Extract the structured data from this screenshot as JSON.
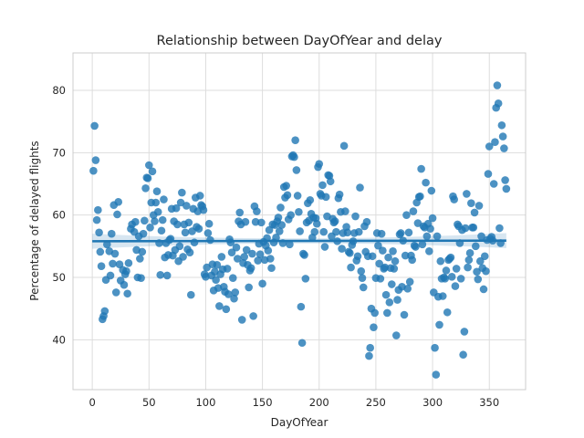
{
  "chart_data": {
    "type": "scatter",
    "title": "Relationship between DayOfYear and delay",
    "xlabel": "DayOfYear",
    "ylabel": "Percentage of delayed flights",
    "xlim": [
      -17,
      382
    ],
    "ylim": [
      32,
      86
    ],
    "x_ticks": [
      0,
      50,
      100,
      150,
      200,
      250,
      300,
      350
    ],
    "y_ticks": [
      40,
      50,
      60,
      70,
      80
    ],
    "grid": true,
    "point_color": "#1f77b4",
    "regression": {
      "x_start": 0,
      "x_end": 365,
      "y_start": 55.8,
      "y_end": 55.9,
      "ci_half_width_ends": 1.2,
      "ci_half_width_mid": 0.4
    },
    "points": [
      [
        1,
        67.1
      ],
      [
        2,
        74.3
      ],
      [
        3,
        68.8
      ],
      [
        4,
        59.2
      ],
      [
        5,
        60.8
      ],
      [
        6,
        57.2
      ],
      [
        7,
        54.1
      ],
      [
        8,
        51.8
      ],
      [
        9,
        43.3
      ],
      [
        10,
        43.8
      ],
      [
        11,
        44.6
      ],
      [
        12,
        49.6
      ],
      [
        13,
        55.3
      ],
      [
        15,
        54.2
      ],
      [
        16,
        50.3
      ],
      [
        17,
        57.0
      ],
      [
        18,
        52.2
      ],
      [
        19,
        61.6
      ],
      [
        20,
        53.8
      ],
      [
        21,
        47.6
      ],
      [
        22,
        60.1
      ],
      [
        23,
        62.1
      ],
      [
        24,
        52.1
      ],
      [
        25,
        49.5
      ],
      [
        27,
        51.2
      ],
      [
        28,
        48.8
      ],
      [
        29,
        50.5
      ],
      [
        30,
        51.0
      ],
      [
        31,
        47.4
      ],
      [
        32,
        52.3
      ],
      [
        34,
        57.8
      ],
      [
        35,
        58.5
      ],
      [
        37,
        57.3
      ],
      [
        38,
        58.9
      ],
      [
        39,
        54.4
      ],
      [
        40,
        50.0
      ],
      [
        41,
        56.6
      ],
      [
        42,
        53.0
      ],
      [
        43,
        49.9
      ],
      [
        44,
        54.1
      ],
      [
        45,
        57.0
      ],
      [
        46,
        59.1
      ],
      [
        47,
        64.3
      ],
      [
        48,
        66.0
      ],
      [
        49,
        65.9
      ],
      [
        50,
        68.0
      ],
      [
        51,
        58.0
      ],
      [
        52,
        62.0
      ],
      [
        53,
        67.0
      ],
      [
        54,
        60.0
      ],
      [
        55,
        59.0
      ],
      [
        56,
        62.0
      ],
      [
        57,
        63.8
      ],
      [
        58,
        60.5
      ],
      [
        59,
        55.5
      ],
      [
        60,
        50.4
      ],
      [
        61,
        57.5
      ],
      [
        62,
        59.2
      ],
      [
        63,
        62.5
      ],
      [
        64,
        53.2
      ],
      [
        65,
        55.5
      ],
      [
        66,
        50.3
      ],
      [
        67,
        53.6
      ],
      [
        68,
        56.0
      ],
      [
        69,
        56.2
      ],
      [
        70,
        61.0
      ],
      [
        71,
        53.5
      ],
      [
        72,
        59.0
      ],
      [
        73,
        54.4
      ],
      [
        74,
        61.1
      ],
      [
        75,
        58.5
      ],
      [
        76,
        52.6
      ],
      [
        77,
        55.0
      ],
      [
        78,
        62.0
      ],
      [
        79,
        63.6
      ],
      [
        80,
        53.3
      ],
      [
        81,
        58.5
      ],
      [
        82,
        57.2
      ],
      [
        83,
        61.5
      ],
      [
        84,
        54.5
      ],
      [
        85,
        58.8
      ],
      [
        86,
        54.0
      ],
      [
        87,
        47.2
      ],
      [
        88,
        57.4
      ],
      [
        89,
        61.0
      ],
      [
        90,
        55.6
      ],
      [
        91,
        62.8
      ],
      [
        92,
        58.1
      ],
      [
        93,
        60.6
      ],
      [
        94,
        57.8
      ],
      [
        95,
        63.1
      ],
      [
        96,
        61.6
      ],
      [
        97,
        61.4
      ],
      [
        98,
        60.8
      ],
      [
        99,
        50.5
      ],
      [
        100,
        50.1
      ],
      [
        101,
        51.6
      ],
      [
        102,
        57.1
      ],
      [
        103,
        58.6
      ],
      [
        104,
        56.0
      ],
      [
        105,
        50.3
      ],
      [
        106,
        52.1
      ],
      [
        107,
        47.9
      ],
      [
        108,
        50.9
      ],
      [
        109,
        49.6
      ],
      [
        110,
        52.0
      ],
      [
        111,
        48.3
      ],
      [
        112,
        45.4
      ],
      [
        113,
        50.5
      ],
      [
        114,
        53.3
      ],
      [
        115,
        51.3
      ],
      [
        116,
        48.5
      ],
      [
        117,
        47.7
      ],
      [
        118,
        44.9
      ],
      [
        119,
        51.4
      ],
      [
        120,
        47.3
      ],
      [
        121,
        56.1
      ],
      [
        122,
        55.6
      ],
      [
        123,
        54.0
      ],
      [
        124,
        49.9
      ],
      [
        125,
        46.6
      ],
      [
        126,
        47.6
      ],
      [
        127,
        54.8
      ],
      [
        128,
        53.0
      ],
      [
        129,
        59.0
      ],
      [
        130,
        60.4
      ],
      [
        131,
        58.5
      ],
      [
        132,
        43.2
      ],
      [
        133,
        52.3
      ],
      [
        134,
        53.3
      ],
      [
        135,
        58.9
      ],
      [
        136,
        54.4
      ],
      [
        137,
        52.0
      ],
      [
        138,
        48.4
      ],
      [
        139,
        51.1
      ],
      [
        140,
        51.5
      ],
      [
        141,
        53.8
      ],
      [
        142,
        43.8
      ],
      [
        143,
        61.4
      ],
      [
        144,
        58.9
      ],
      [
        145,
        60.6
      ],
      [
        146,
        52.7
      ],
      [
        147,
        55.4
      ],
      [
        148,
        53.7
      ],
      [
        149,
        58.8
      ],
      [
        150,
        49.0
      ],
      [
        151,
        55.7
      ],
      [
        152,
        52.8
      ],
      [
        153,
        55.1
      ],
      [
        154,
        56.3
      ],
      [
        155,
        54.3
      ],
      [
        156,
        57.6
      ],
      [
        157,
        53.0
      ],
      [
        158,
        51.5
      ],
      [
        159,
        58.5
      ],
      [
        160,
        55.6
      ],
      [
        161,
        58.4
      ],
      [
        162,
        56.4
      ],
      [
        163,
        59.0
      ],
      [
        164,
        59.6
      ],
      [
        165,
        57.4
      ],
      [
        166,
        61.2
      ],
      [
        167,
        58.4
      ],
      [
        168,
        55.5
      ],
      [
        169,
        64.5
      ],
      [
        170,
        62.8
      ],
      [
        171,
        64.7
      ],
      [
        172,
        63.2
      ],
      [
        173,
        59.3
      ],
      [
        174,
        55.3
      ],
      [
        175,
        60.0
      ],
      [
        176,
        69.4
      ],
      [
        177,
        69.6
      ],
      [
        178,
        69.3
      ],
      [
        179,
        72.0
      ],
      [
        180,
        67.2
      ],
      [
        181,
        63.1
      ],
      [
        182,
        60.5
      ],
      [
        183,
        57.4
      ],
      [
        184,
        45.3
      ],
      [
        185,
        39.5
      ],
      [
        186,
        53.8
      ],
      [
        187,
        53.6
      ],
      [
        188,
        49.8
      ],
      [
        189,
        58.8
      ],
      [
        190,
        61.9
      ],
      [
        191,
        59.1
      ],
      [
        192,
        62.4
      ],
      [
        193,
        60.2
      ],
      [
        194,
        56.4
      ],
      [
        195,
        59.6
      ],
      [
        196,
        57.3
      ],
      [
        197,
        59.5
      ],
      [
        198,
        58.6
      ],
      [
        199,
        67.7
      ],
      [
        200,
        68.2
      ],
      [
        201,
        63.4
      ],
      [
        202,
        63.1
      ],
      [
        203,
        64.8
      ],
      [
        204,
        57.3
      ],
      [
        205,
        54.9
      ],
      [
        206,
        62.9
      ],
      [
        207,
        59.8
      ],
      [
        208,
        66.4
      ],
      [
        209,
        66.3
      ],
      [
        210,
        65.4
      ],
      [
        211,
        56.6
      ],
      [
        212,
        59.4
      ],
      [
        213,
        58.8
      ],
      [
        214,
        59.0
      ],
      [
        215,
        57.3
      ],
      [
        216,
        55.8
      ],
      [
        217,
        62.7
      ],
      [
        218,
        63.3
      ],
      [
        219,
        60.5
      ],
      [
        220,
        54.6
      ],
      [
        221,
        57.1
      ],
      [
        222,
        71.1
      ],
      [
        223,
        60.6
      ],
      [
        224,
        58.1
      ],
      [
        225,
        57.2
      ],
      [
        226,
        54.1
      ],
      [
        227,
        53.9
      ],
      [
        228,
        51.6
      ],
      [
        229,
        55.2
      ],
      [
        230,
        55.8
      ],
      [
        231,
        57.1
      ],
      [
        232,
        59.8
      ],
      [
        233,
        52.7
      ],
      [
        234,
        53.4
      ],
      [
        235,
        57.3
      ],
      [
        236,
        64.4
      ],
      [
        237,
        51.0
      ],
      [
        238,
        49.9
      ],
      [
        239,
        48.4
      ],
      [
        240,
        58.2
      ],
      [
        241,
        54.1
      ],
      [
        242,
        58.9
      ],
      [
        243,
        53.4
      ],
      [
        244,
        37.4
      ],
      [
        245,
        38.7
      ],
      [
        246,
        45.0
      ],
      [
        247,
        53.4
      ],
      [
        248,
        42.0
      ],
      [
        249,
        44.3
      ],
      [
        250,
        49.9
      ],
      [
        251,
        57.1
      ],
      [
        252,
        55.1
      ],
      [
        253,
        52.2
      ],
      [
        254,
        49.8
      ],
      [
        255,
        57.0
      ],
      [
        256,
        54.3
      ],
      [
        257,
        51.4
      ],
      [
        258,
        51.6
      ],
      [
        259,
        47.2
      ],
      [
        260,
        44.3
      ],
      [
        261,
        53.2
      ],
      [
        262,
        46.0
      ],
      [
        263,
        51.5
      ],
      [
        264,
        48.9
      ],
      [
        265,
        54.2
      ],
      [
        266,
        51.4
      ],
      [
        267,
        52.6
      ],
      [
        268,
        40.7
      ],
      [
        269,
        46.4
      ],
      [
        270,
        48.0
      ],
      [
        271,
        56.9
      ],
      [
        272,
        57.1
      ],
      [
        273,
        48.5
      ],
      [
        274,
        55.9
      ],
      [
        275,
        44.0
      ],
      [
        276,
        53.5
      ],
      [
        277,
        60.0
      ],
      [
        278,
        48.2
      ],
      [
        279,
        57.2
      ],
      [
        280,
        49.3
      ],
      [
        281,
        53.5
      ],
      [
        282,
        52.8
      ],
      [
        283,
        60.6
      ],
      [
        284,
        55.1
      ],
      [
        285,
        54.9
      ],
      [
        286,
        62.0
      ],
      [
        287,
        58.7
      ],
      [
        288,
        62.9
      ],
      [
        289,
        63.0
      ],
      [
        290,
        67.4
      ],
      [
        291,
        55.3
      ],
      [
        292,
        58.2
      ],
      [
        293,
        58.0
      ],
      [
        294,
        65.2
      ],
      [
        295,
        56.6
      ],
      [
        296,
        58.6
      ],
      [
        297,
        54.2
      ],
      [
        298,
        57.8
      ],
      [
        299,
        63.9
      ],
      [
        300,
        59.5
      ],
      [
        301,
        47.6
      ],
      [
        302,
        38.7
      ],
      [
        303,
        34.4
      ],
      [
        304,
        56.6
      ],
      [
        305,
        46.9
      ],
      [
        306,
        42.4
      ],
      [
        307,
        52.6
      ],
      [
        308,
        49.8
      ],
      [
        309,
        47.0
      ],
      [
        310,
        50.0
      ],
      [
        311,
        49.8
      ],
      [
        312,
        51.1
      ],
      [
        313,
        44.4
      ],
      [
        314,
        52.8
      ],
      [
        315,
        53.0
      ],
      [
        316,
        53.2
      ],
      [
        317,
        50.1
      ],
      [
        318,
        63.0
      ],
      [
        319,
        62.5
      ],
      [
        320,
        48.6
      ],
      [
        321,
        51.4
      ],
      [
        322,
        58.5
      ],
      [
        323,
        58.2
      ],
      [
        324,
        55.5
      ],
      [
        325,
        49.8
      ],
      [
        326,
        57.6
      ],
      [
        327,
        37.6
      ],
      [
        328,
        41.3
      ],
      [
        329,
        57.9
      ],
      [
        330,
        63.4
      ],
      [
        331,
        51.6
      ],
      [
        332,
        52.8
      ],
      [
        333,
        53.9
      ],
      [
        334,
        61.9
      ],
      [
        335,
        58.0
      ],
      [
        336,
        58.0
      ],
      [
        337,
        60.4
      ],
      [
        338,
        55.0
      ],
      [
        339,
        50.9
      ],
      [
        340,
        49.7
      ],
      [
        341,
        61.5
      ],
      [
        342,
        52.6
      ],
      [
        343,
        56.6
      ],
      [
        344,
        51.5
      ],
      [
        345,
        48.1
      ],
      [
        346,
        53.4
      ],
      [
        347,
        51.0
      ],
      [
        348,
        56.0
      ],
      [
        349,
        66.6
      ],
      [
        350,
        71.0
      ],
      [
        351,
        56.2
      ],
      [
        352,
        56.5
      ],
      [
        353,
        55.9
      ],
      [
        354,
        65.0
      ],
      [
        355,
        71.7
      ],
      [
        356,
        77.2
      ],
      [
        357,
        80.8
      ],
      [
        358,
        77.9
      ],
      [
        359,
        57.9
      ],
      [
        360,
        55.5
      ],
      [
        361,
        74.4
      ],
      [
        362,
        72.6
      ],
      [
        363,
        70.7
      ],
      [
        364,
        65.6
      ],
      [
        365,
        64.2
      ]
    ]
  }
}
